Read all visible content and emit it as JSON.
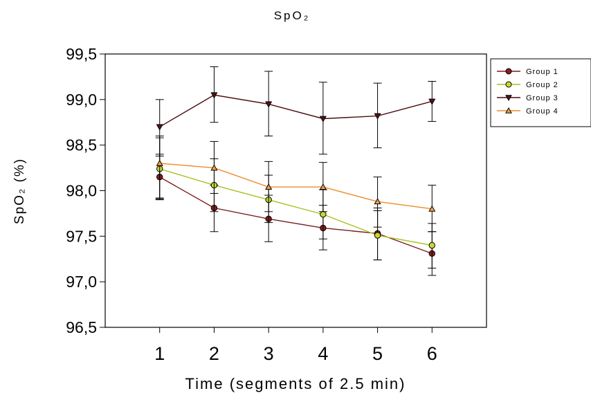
{
  "chart_data": {
    "type": "line",
    "title": "SpO₂",
    "xlabel": "Time (segments of 2.5 min)",
    "ylabel": "SpO₂ (%)",
    "x": [
      1,
      2,
      3,
      4,
      5,
      6
    ],
    "x_tick_labels": [
      "1",
      "2",
      "3",
      "4",
      "5",
      "6"
    ],
    "xlim": [
      0,
      7
    ],
    "ylim": [
      96.5,
      99.5
    ],
    "y_ticks": [
      96.5,
      97.0,
      97.5,
      98.0,
      98.5,
      99.0,
      99.5
    ],
    "y_tick_labels": [
      "96,5",
      "97,0",
      "97,5",
      "98,0",
      "98,5",
      "99,0",
      "99,5"
    ],
    "grid": false,
    "legend_position": "top-right",
    "series": [
      {
        "name": "Group 1",
        "marker": "circle",
        "color": "#7a1a1a",
        "fill": "#8b1c1c",
        "values": [
          98.15,
          97.81,
          97.69,
          97.59,
          97.53,
          97.31
        ],
        "err_low": [
          97.91,
          97.55,
          97.44,
          97.35,
          97.24,
          97.07
        ],
        "err_high": [
          98.4,
          98.06,
          97.95,
          97.84,
          97.81,
          97.55
        ]
      },
      {
        "name": "Group 2",
        "marker": "circle",
        "color": "#a8c21e",
        "fill": "#c8d830",
        "values": [
          98.24,
          98.06,
          97.9,
          97.74,
          97.51,
          97.4
        ],
        "err_low": [
          97.92,
          97.77,
          97.65,
          97.47,
          97.24,
          97.15
        ],
        "err_high": [
          98.58,
          98.35,
          98.17,
          98.01,
          97.78,
          97.64
        ]
      },
      {
        "name": "Group 3",
        "marker": "triangle-down",
        "color": "#4a0d0d",
        "fill": "#5a1212",
        "values": [
          98.7,
          99.05,
          98.95,
          98.79,
          98.82,
          98.98
        ],
        "err_low": [
          98.38,
          98.75,
          98.6,
          98.4,
          98.47,
          98.76
        ],
        "err_high": [
          99.0,
          99.36,
          99.31,
          99.19,
          99.18,
          99.2
        ]
      },
      {
        "name": "Group 4",
        "marker": "triangle-up",
        "color": "#ee8a2a",
        "fill": "#f5a04a",
        "values": [
          98.3,
          98.25,
          98.04,
          98.04,
          97.88,
          97.8
        ],
        "err_low": [
          97.9,
          97.97,
          97.77,
          97.77,
          97.6,
          97.55
        ],
        "err_high": [
          98.6,
          98.54,
          98.32,
          98.31,
          98.15,
          98.06
        ]
      }
    ]
  }
}
